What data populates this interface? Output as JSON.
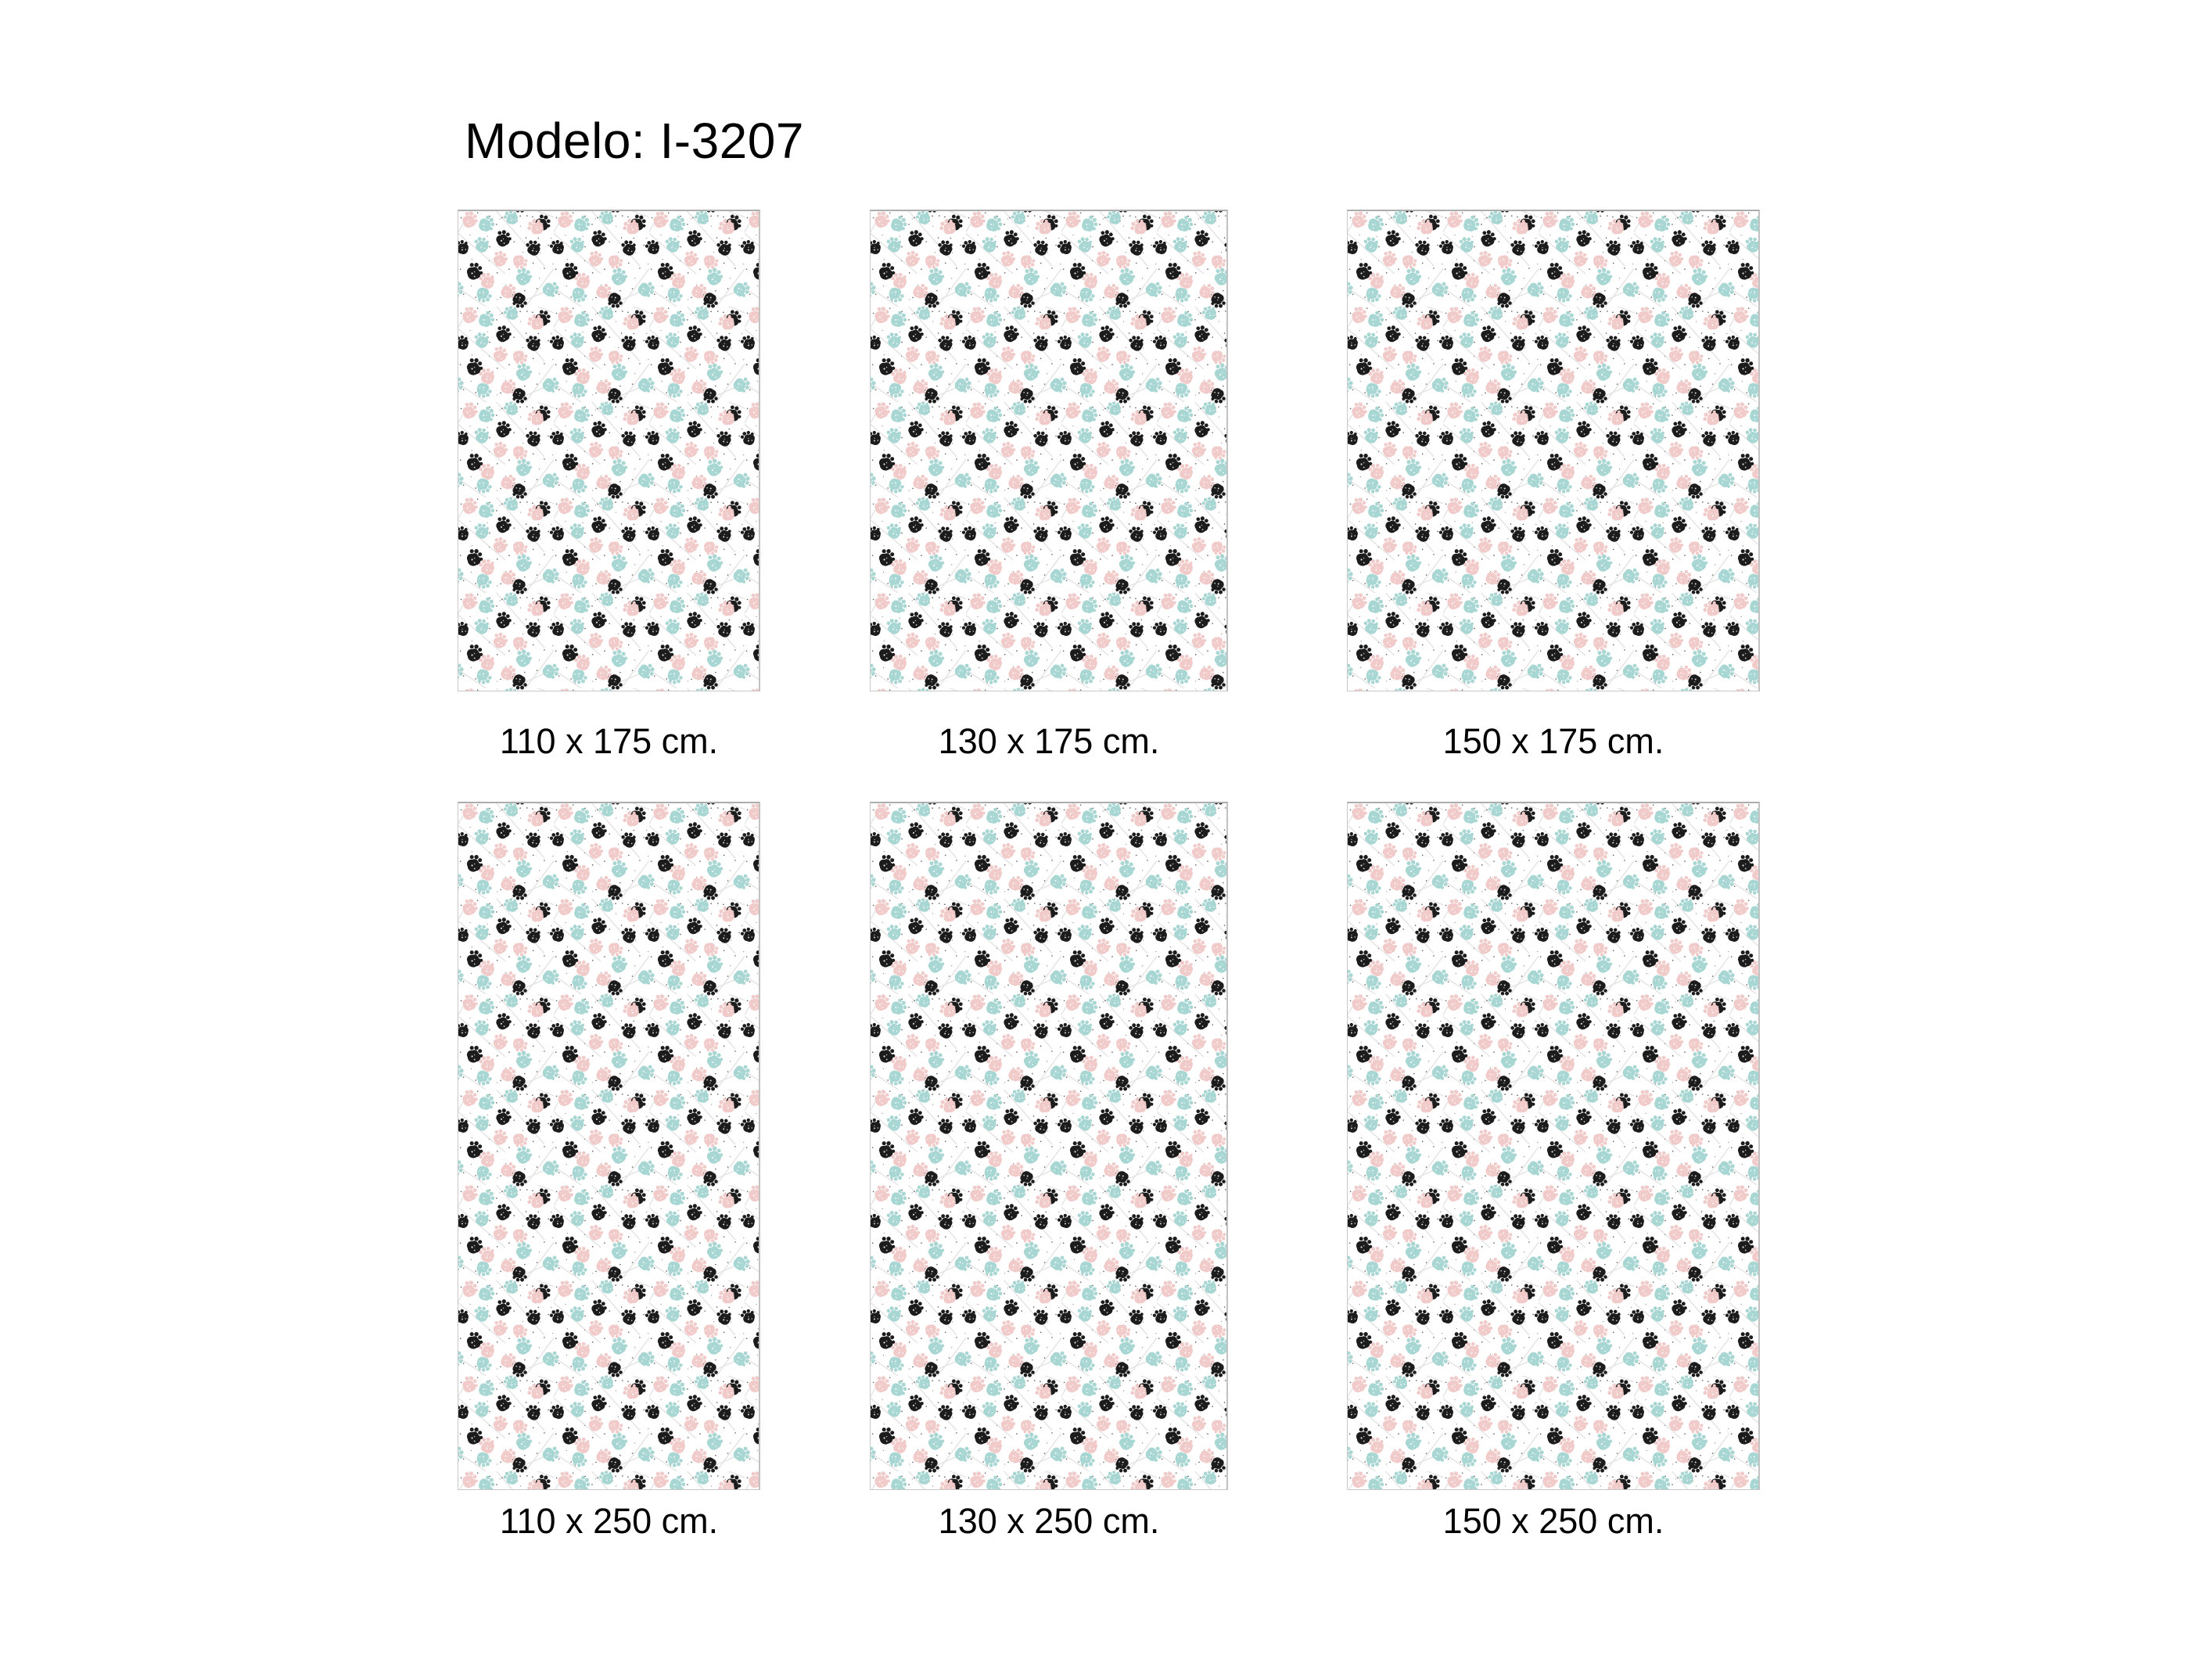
{
  "title": "Modelo: I-3207",
  "pattern": {
    "name": "paw-print-fabric-pattern",
    "colors": {
      "black_paw": "#1c1c1c",
      "pink_paw": "#f1cbca",
      "teal_paw": "#a8d6d2",
      "background": "#ffffff",
      "speckle": "#222222",
      "streak": "#e4e4e4",
      "border": "#c9c9c9"
    }
  },
  "swatches": [
    {
      "label": "110 x 175 cm.",
      "width_cm": 110,
      "height_cm": 175
    },
    {
      "label": "130 x 175 cm.",
      "width_cm": 130,
      "height_cm": 175
    },
    {
      "label": "150 x 175 cm.",
      "width_cm": 150,
      "height_cm": 175
    },
    {
      "label": "110 x 250 cm.",
      "width_cm": 110,
      "height_cm": 250
    },
    {
      "label": "130 x 250 cm.",
      "width_cm": 130,
      "height_cm": 250
    },
    {
      "label": "150 x 250 cm.",
      "width_cm": 150,
      "height_cm": 250
    }
  ]
}
